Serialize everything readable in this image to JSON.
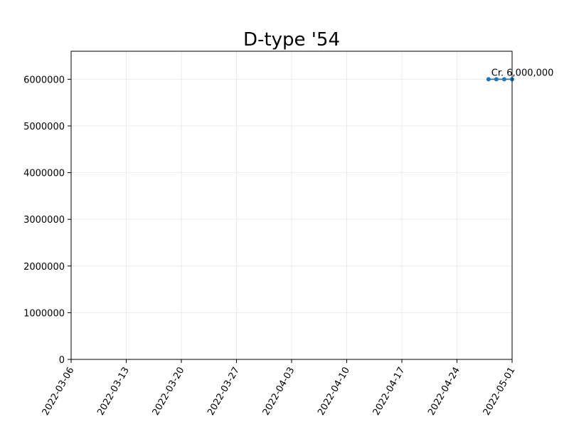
{
  "chart_data": {
    "type": "line",
    "title": "D-type '54",
    "xlabel": "",
    "ylabel": "",
    "x_type": "date",
    "xlim": [
      "2022-03-06",
      "2022-05-01"
    ],
    "ylim": [
      0,
      6600000
    ],
    "x_ticks": [
      "2022-03-06",
      "2022-03-13",
      "2022-03-20",
      "2022-03-27",
      "2022-04-03",
      "2022-04-10",
      "2022-04-17",
      "2022-04-24",
      "2022-05-01"
    ],
    "y_ticks": [
      "0",
      "1000000",
      "2000000",
      "3000000",
      "4000000",
      "5000000",
      "6000000"
    ],
    "grid": true,
    "series": [
      {
        "color": "#1f77b4",
        "points": [
          {
            "x": "2022-04-28",
            "y": 6000000
          },
          {
            "x": "2022-04-29",
            "y": 6000000
          },
          {
            "x": "2022-04-30",
            "y": 6000000
          },
          {
            "x": "2022-05-01",
            "y": 6000000
          }
        ]
      }
    ],
    "annotation": {
      "x": "2022-04-28",
      "y": 6000000,
      "text": "Cr. 6,000,000"
    }
  }
}
